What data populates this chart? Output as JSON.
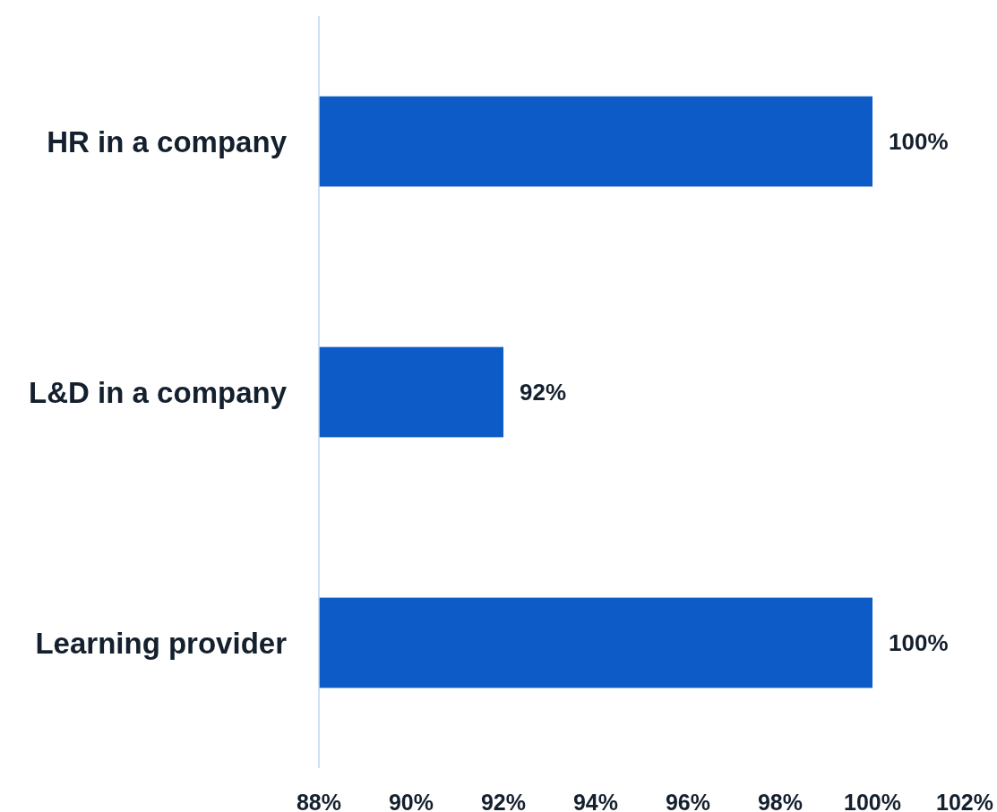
{
  "chart_data": {
    "type": "bar",
    "orientation": "horizontal",
    "categories": [
      "HR in a company",
      "L&D in a company",
      "Learning provider"
    ],
    "values": [
      100,
      92,
      100
    ],
    "value_labels": [
      "100%",
      "92%",
      "100%"
    ],
    "color": "#0d5bc6",
    "xlim": [
      88,
      102
    ],
    "xticks": [
      {
        "value": 88,
        "label": "88%"
      },
      {
        "value": 90,
        "label": "90%"
      },
      {
        "value": 92,
        "label": "92%"
      },
      {
        "value": 94,
        "label": "94%"
      },
      {
        "value": 96,
        "label": "96%"
      },
      {
        "value": 98,
        "label": "98%"
      },
      {
        "value": 100,
        "label": "100%"
      },
      {
        "value": 102,
        "label": "102%"
      }
    ],
    "grid": false
  }
}
